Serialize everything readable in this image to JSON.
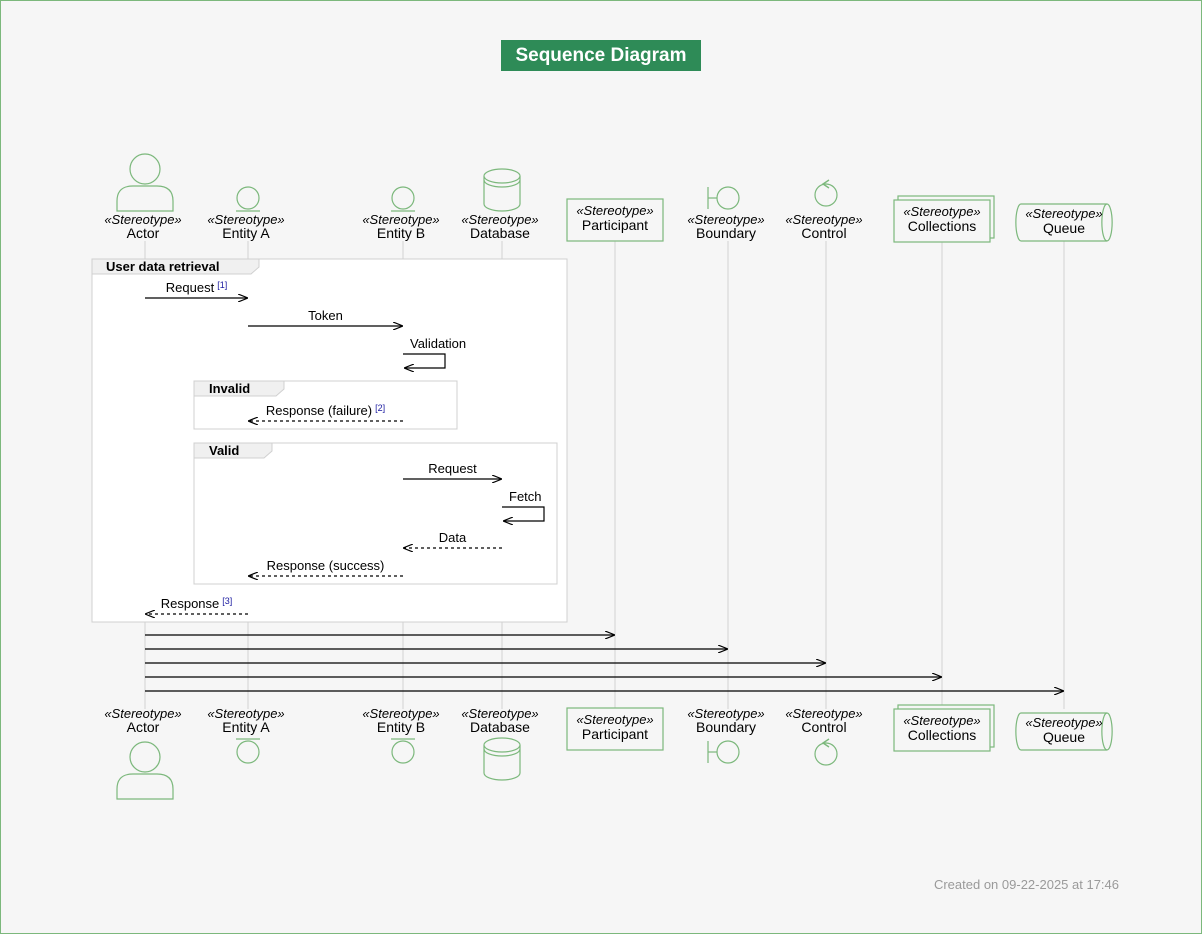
{
  "title": "Sequence Diagram",
  "footer": "Created on 09-22-2025 at 17:46",
  "stereotype": "«Stereotype»",
  "colors": {
    "accent": "#2e8b57",
    "shape_stroke": "#7cb87c",
    "lifeline": "#d3d3d3",
    "note_ref": "#1a1aa0"
  },
  "participants": [
    {
      "id": "actor",
      "label": "Actor",
      "kind": "actor"
    },
    {
      "id": "entity_a",
      "label": "Entity A",
      "kind": "entity"
    },
    {
      "id": "entity_b",
      "label": "Entity B",
      "kind": "entity"
    },
    {
      "id": "database",
      "label": "Database",
      "kind": "database"
    },
    {
      "id": "participant",
      "label": "Participant",
      "kind": "participant"
    },
    {
      "id": "boundary",
      "label": "Boundary",
      "kind": "boundary"
    },
    {
      "id": "control",
      "label": "Control",
      "kind": "control"
    },
    {
      "id": "collections",
      "label": "Collections",
      "kind": "collections"
    },
    {
      "id": "queue",
      "label": "Queue",
      "kind": "queue"
    }
  ],
  "groups": [
    {
      "id": "user-data-retrieval",
      "label": "User data retrieval"
    },
    {
      "id": "invalid",
      "label": "Invalid"
    },
    {
      "id": "valid",
      "label": "Valid"
    }
  ],
  "messages": [
    {
      "from": "actor",
      "to": "entity_a",
      "label": "Request",
      "ref": "1",
      "style": "solid"
    },
    {
      "from": "entity_a",
      "to": "entity_b",
      "label": "Token",
      "style": "solid"
    },
    {
      "from": "entity_b",
      "to": "entity_b",
      "label": "Validation",
      "style": "solid",
      "self": true
    },
    {
      "from": "entity_b",
      "to": "entity_a",
      "label": "Response (failure)",
      "ref": "2",
      "style": "dashed"
    },
    {
      "from": "entity_b",
      "to": "database",
      "label": "Request",
      "style": "solid"
    },
    {
      "from": "database",
      "to": "database",
      "label": "Fetch",
      "style": "solid",
      "self": true
    },
    {
      "from": "database",
      "to": "entity_b",
      "label": "Data",
      "style": "dashed"
    },
    {
      "from": "entity_b",
      "to": "entity_a",
      "label": "Response (success)",
      "style": "dashed"
    },
    {
      "from": "entity_a",
      "to": "actor",
      "label": "Response",
      "ref": "3",
      "style": "dashed"
    },
    {
      "from": "actor",
      "to": "participant",
      "label": "",
      "style": "solid"
    },
    {
      "from": "actor",
      "to": "boundary",
      "label": "",
      "style": "solid"
    },
    {
      "from": "actor",
      "to": "control",
      "label": "",
      "style": "solid"
    },
    {
      "from": "actor",
      "to": "collections",
      "label": "",
      "style": "solid"
    },
    {
      "from": "actor",
      "to": "queue",
      "label": "",
      "style": "solid"
    }
  ]
}
